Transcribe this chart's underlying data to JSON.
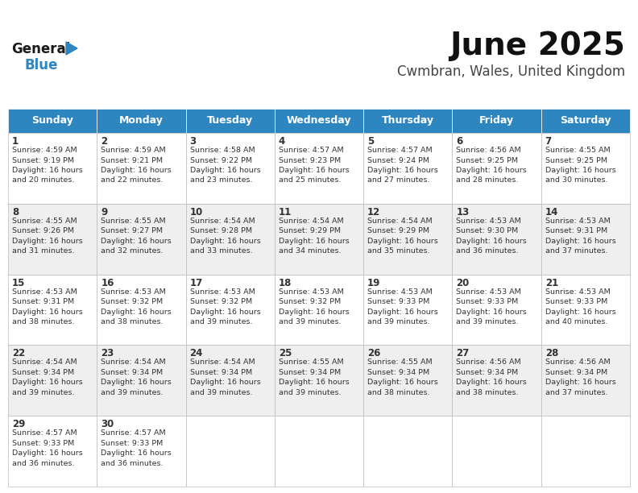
{
  "title": "June 2025",
  "subtitle": "Cwmbran, Wales, United Kingdom",
  "header_bg": "#2E86C1",
  "header_text_color": "#FFFFFF",
  "cell_bg_odd": "#FFFFFF",
  "cell_bg_even": "#EFEFEF",
  "border_color": "#BBBBBB",
  "text_color": "#333333",
  "days_of_week": [
    "Sunday",
    "Monday",
    "Tuesday",
    "Wednesday",
    "Thursday",
    "Friday",
    "Saturday"
  ],
  "weeks": [
    [
      {
        "day": "1",
        "sunrise": "4:59 AM",
        "sunset": "9:19 PM",
        "daylight_line1": "16 hours",
        "daylight_line2": "and 20 minutes."
      },
      {
        "day": "2",
        "sunrise": "4:59 AM",
        "sunset": "9:21 PM",
        "daylight_line1": "16 hours",
        "daylight_line2": "and 22 minutes."
      },
      {
        "day": "3",
        "sunrise": "4:58 AM",
        "sunset": "9:22 PM",
        "daylight_line1": "16 hours",
        "daylight_line2": "and 23 minutes."
      },
      {
        "day": "4",
        "sunrise": "4:57 AM",
        "sunset": "9:23 PM",
        "daylight_line1": "16 hours",
        "daylight_line2": "and 25 minutes."
      },
      {
        "day": "5",
        "sunrise": "4:57 AM",
        "sunset": "9:24 PM",
        "daylight_line1": "16 hours",
        "daylight_line2": "and 27 minutes."
      },
      {
        "day": "6",
        "sunrise": "4:56 AM",
        "sunset": "9:25 PM",
        "daylight_line1": "16 hours",
        "daylight_line2": "and 28 minutes."
      },
      {
        "day": "7",
        "sunrise": "4:55 AM",
        "sunset": "9:25 PM",
        "daylight_line1": "16 hours",
        "daylight_line2": "and 30 minutes."
      }
    ],
    [
      {
        "day": "8",
        "sunrise": "4:55 AM",
        "sunset": "9:26 PM",
        "daylight_line1": "16 hours",
        "daylight_line2": "and 31 minutes."
      },
      {
        "day": "9",
        "sunrise": "4:55 AM",
        "sunset": "9:27 PM",
        "daylight_line1": "16 hours",
        "daylight_line2": "and 32 minutes."
      },
      {
        "day": "10",
        "sunrise": "4:54 AM",
        "sunset": "9:28 PM",
        "daylight_line1": "16 hours",
        "daylight_line2": "and 33 minutes."
      },
      {
        "day": "11",
        "sunrise": "4:54 AM",
        "sunset": "9:29 PM",
        "daylight_line1": "16 hours",
        "daylight_line2": "and 34 minutes."
      },
      {
        "day": "12",
        "sunrise": "4:54 AM",
        "sunset": "9:29 PM",
        "daylight_line1": "16 hours",
        "daylight_line2": "and 35 minutes."
      },
      {
        "day": "13",
        "sunrise": "4:53 AM",
        "sunset": "9:30 PM",
        "daylight_line1": "16 hours",
        "daylight_line2": "and 36 minutes."
      },
      {
        "day": "14",
        "sunrise": "4:53 AM",
        "sunset": "9:31 PM",
        "daylight_line1": "16 hours",
        "daylight_line2": "and 37 minutes."
      }
    ],
    [
      {
        "day": "15",
        "sunrise": "4:53 AM",
        "sunset": "9:31 PM",
        "daylight_line1": "16 hours",
        "daylight_line2": "and 38 minutes."
      },
      {
        "day": "16",
        "sunrise": "4:53 AM",
        "sunset": "9:32 PM",
        "daylight_line1": "16 hours",
        "daylight_line2": "and 38 minutes."
      },
      {
        "day": "17",
        "sunrise": "4:53 AM",
        "sunset": "9:32 PM",
        "daylight_line1": "16 hours",
        "daylight_line2": "and 39 minutes."
      },
      {
        "day": "18",
        "sunrise": "4:53 AM",
        "sunset": "9:32 PM",
        "daylight_line1": "16 hours",
        "daylight_line2": "and 39 minutes."
      },
      {
        "day": "19",
        "sunrise": "4:53 AM",
        "sunset": "9:33 PM",
        "daylight_line1": "16 hours",
        "daylight_line2": "and 39 minutes."
      },
      {
        "day": "20",
        "sunrise": "4:53 AM",
        "sunset": "9:33 PM",
        "daylight_line1": "16 hours",
        "daylight_line2": "and 39 minutes."
      },
      {
        "day": "21",
        "sunrise": "4:53 AM",
        "sunset": "9:33 PM",
        "daylight_line1": "16 hours",
        "daylight_line2": "and 40 minutes."
      }
    ],
    [
      {
        "day": "22",
        "sunrise": "4:54 AM",
        "sunset": "9:34 PM",
        "daylight_line1": "16 hours",
        "daylight_line2": "and 39 minutes."
      },
      {
        "day": "23",
        "sunrise": "4:54 AM",
        "sunset": "9:34 PM",
        "daylight_line1": "16 hours",
        "daylight_line2": "and 39 minutes."
      },
      {
        "day": "24",
        "sunrise": "4:54 AM",
        "sunset": "9:34 PM",
        "daylight_line1": "16 hours",
        "daylight_line2": "and 39 minutes."
      },
      {
        "day": "25",
        "sunrise": "4:55 AM",
        "sunset": "9:34 PM",
        "daylight_line1": "16 hours",
        "daylight_line2": "and 39 minutes."
      },
      {
        "day": "26",
        "sunrise": "4:55 AM",
        "sunset": "9:34 PM",
        "daylight_line1": "16 hours",
        "daylight_line2": "and 38 minutes."
      },
      {
        "day": "27",
        "sunrise": "4:56 AM",
        "sunset": "9:34 PM",
        "daylight_line1": "16 hours",
        "daylight_line2": "and 38 minutes."
      },
      {
        "day": "28",
        "sunrise": "4:56 AM",
        "sunset": "9:34 PM",
        "daylight_line1": "16 hours",
        "daylight_line2": "and 37 minutes."
      }
    ],
    [
      {
        "day": "29",
        "sunrise": "4:57 AM",
        "sunset": "9:33 PM",
        "daylight_line1": "16 hours",
        "daylight_line2": "and 36 minutes."
      },
      {
        "day": "30",
        "sunrise": "4:57 AM",
        "sunset": "9:33 PM",
        "daylight_line1": "16 hours",
        "daylight_line2": "and 36 minutes."
      },
      null,
      null,
      null,
      null,
      null
    ]
  ],
  "logo_general_color": "#1a1a1a",
  "logo_blue_color": "#2E86C1",
  "bg_color": "#FFFFFF",
  "fig_width": 7.92,
  "fig_height": 6.12,
  "dpi": 100
}
